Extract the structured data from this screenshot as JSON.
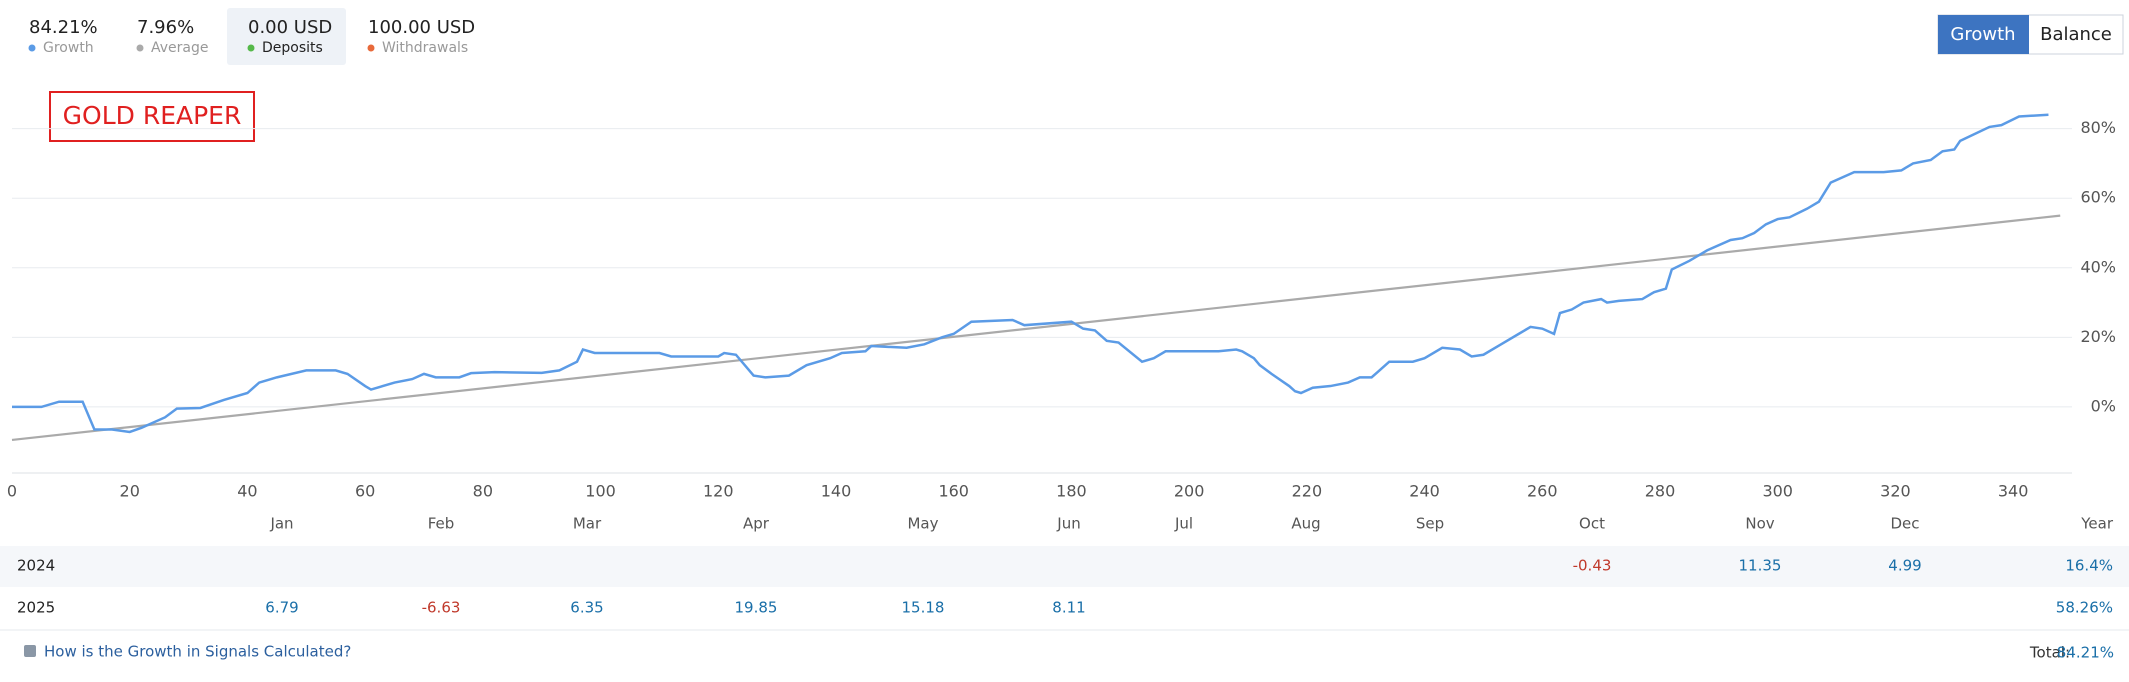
{
  "header": {
    "stats": [
      {
        "value": "84.21%",
        "label": "Growth",
        "color": "#5b9be6"
      },
      {
        "value": "7.96%",
        "label": "Average",
        "color": "#aaaaaa"
      },
      {
        "value": "0.00 USD",
        "label": "Deposits",
        "color": "#55b94a"
      },
      {
        "value": "100.00 USD",
        "label": "Withdrawals",
        "color": "#e8693a"
      }
    ],
    "tabs": [
      "Growth",
      "Balance"
    ]
  },
  "chart_data": {
    "type": "line",
    "annotation": "GOLD REAPER",
    "xlim": [
      0,
      350
    ],
    "xticks": [
      0,
      20,
      40,
      60,
      80,
      100,
      120,
      140,
      160,
      180,
      200,
      220,
      240,
      260,
      280,
      300,
      320,
      340
    ],
    "ylim": [
      -19,
      96
    ],
    "yticks": [
      {
        "value": 0,
        "label": "0%"
      },
      {
        "value": 20,
        "label": "20%"
      },
      {
        "value": 40,
        "label": "40%"
      },
      {
        "value": 60,
        "label": "60%"
      },
      {
        "value": 80,
        "label": "80%"
      }
    ],
    "grid": true,
    "series": [
      {
        "name": "Growth",
        "color": "#5b9be6",
        "x": [
          0,
          5,
          8,
          12,
          14,
          17,
          20,
          22,
          26,
          28,
          32,
          36,
          40,
          42,
          45,
          50,
          55,
          57,
          60,
          61,
          65,
          68,
          70,
          72,
          76,
          78,
          82,
          90,
          93,
          96,
          97,
          99,
          110,
          112,
          120,
          121,
          123,
          126,
          128,
          132,
          135,
          139,
          141,
          145,
          146,
          152,
          155,
          158,
          160,
          163,
          170,
          172,
          180,
          182,
          184,
          186,
          188,
          192,
          194,
          196,
          205,
          208,
          209,
          211,
          212,
          214,
          217,
          218,
          219,
          221,
          224,
          227,
          229,
          231,
          232,
          234,
          238,
          240,
          243,
          246,
          248,
          250,
          253,
          256,
          258,
          260,
          262,
          263,
          265,
          267,
          270,
          271,
          273,
          277,
          279,
          281,
          282,
          285,
          288,
          292,
          294,
          296,
          298,
          300,
          302,
          305,
          307,
          309,
          313,
          318,
          321,
          323,
          326,
          328,
          330,
          331,
          336,
          338,
          341,
          346
        ],
        "values": [
          0,
          0,
          1.5,
          1.5,
          -6.5,
          -6.5,
          -7.2,
          -6,
          -3,
          -0.5,
          -0.3,
          2,
          4,
          7,
          8.5,
          10.5,
          10.5,
          9.5,
          6,
          5,
          7,
          8,
          9.5,
          8.5,
          8.5,
          9.7,
          10,
          9.8,
          10.5,
          13,
          16.5,
          15.5,
          15.5,
          14.5,
          14.5,
          15.5,
          15,
          9,
          8.5,
          9,
          12,
          14,
          15.5,
          16,
          17.5,
          17,
          18,
          20,
          21,
          24.5,
          25,
          23.5,
          24.5,
          22.5,
          22,
          19,
          18.5,
          13,
          14,
          16,
          16,
          16.5,
          16,
          14,
          12,
          9.5,
          6,
          4.5,
          4,
          5.5,
          6,
          7,
          8.5,
          8.5,
          10,
          13,
          13,
          14,
          17,
          16.5,
          14.5,
          15,
          18,
          21,
          23,
          22.5,
          21,
          27,
          28,
          30,
          31,
          30,
          30.5,
          31,
          33,
          34,
          39.5,
          42,
          45,
          48,
          48.5,
          50,
          52.5,
          54,
          54.5,
          57,
          59,
          64.5,
          67.5,
          67.5,
          68,
          70,
          71,
          73.5,
          74,
          76.5,
          80.5,
          81,
          83.5,
          84
        ]
      },
      {
        "name": "Average",
        "color": "#aaaaaa",
        "x": [
          0,
          348
        ],
        "values": [
          -9.5,
          55
        ]
      }
    ]
  },
  "table": {
    "columns": [
      "Jan",
      "Feb",
      "Mar",
      "Apr",
      "May",
      "Jun",
      "Jul",
      "Aug",
      "Sep",
      "Oct",
      "Nov",
      "Dec",
      "Year"
    ],
    "rows": [
      {
        "year": "2024",
        "cells": [
          null,
          null,
          null,
          null,
          null,
          null,
          null,
          null,
          null,
          -0.43,
          11.35,
          4.99,
          "16.4%"
        ]
      },
      {
        "year": "2025",
        "cells": [
          6.79,
          -6.63,
          6.35,
          19.85,
          15.18,
          8.11,
          null,
          null,
          null,
          null,
          null,
          null,
          "58.26%"
        ]
      }
    ]
  },
  "footer": {
    "link": "How is the Growth in Signals Calculated?",
    "total_label": "Total:",
    "total_value": "84.21%"
  }
}
